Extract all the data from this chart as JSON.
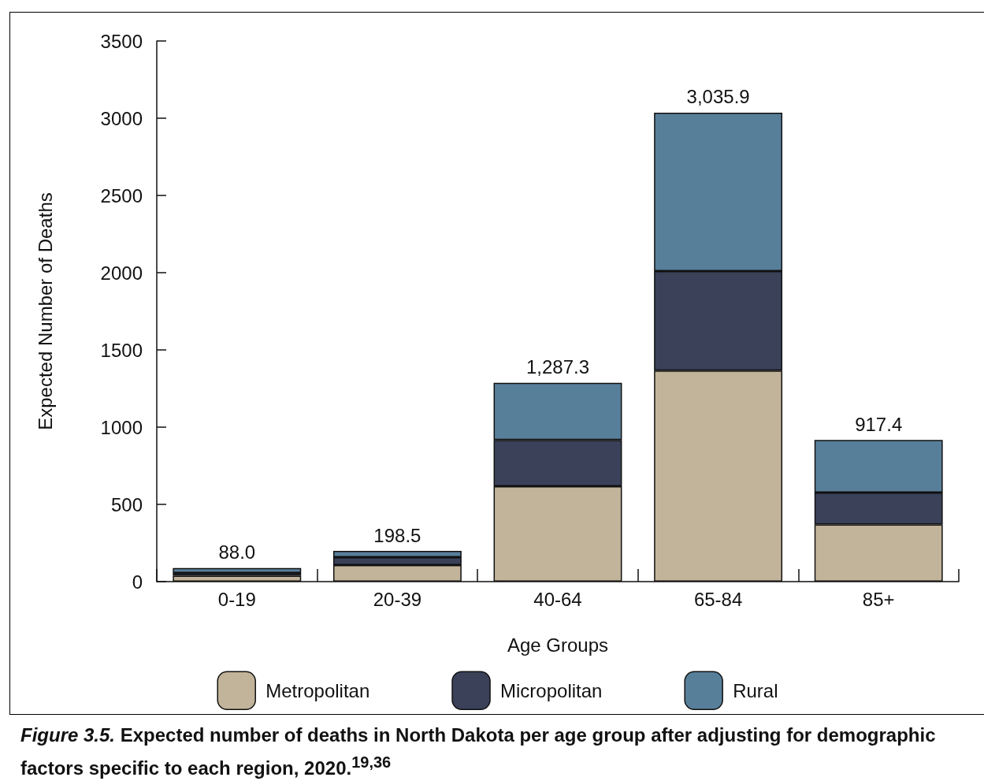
{
  "chart_data": {
    "type": "bar",
    "stacked": true,
    "xlabel": "Age Groups",
    "ylabel": "Expected Number of Deaths",
    "categories": [
      "0-19",
      "20-39",
      "40-64",
      "65-84",
      "85+"
    ],
    "series": [
      {
        "name": "Metropolitan",
        "color": "#c2b49a",
        "values": [
          38,
          107,
          617,
          1366,
          370
        ]
      },
      {
        "name": "Micropolitan",
        "color": "#3a4159",
        "values": [
          18,
          51,
          300,
          644,
          206
        ]
      },
      {
        "name": "Rural",
        "color": "#587f9a",
        "values": [
          32,
          40.5,
          370.3,
          1025.9,
          341.4
        ]
      }
    ],
    "totals": [
      "88.0",
      "198.5",
      "1,287.3",
      "3,035.9",
      "917.4"
    ],
    "ylim": [
      0,
      3500
    ],
    "yticks": [
      0,
      500,
      1000,
      1500,
      2000,
      2500,
      3000,
      3500
    ],
    "grid": false,
    "legend": "bottom",
    "annotations": [
      "Figure 3.5.",
      "Expected number of deaths in North Dakota per age group after adjusting for demographic factors specific to each region, 2020.$^{19,36}$"
    ]
  }
}
